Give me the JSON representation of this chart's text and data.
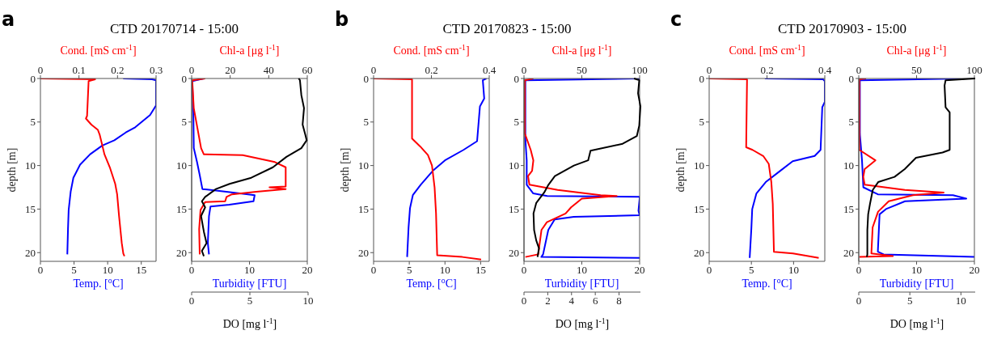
{
  "chart_data": [
    {
      "type": "line",
      "title": "CTD 20170714 - 15:00",
      "annotations": [
        "a"
      ],
      "xlabel": "Temp. [$^{o}$C]",
      "x2label": "Cond. [mS cm$^{-1}$]",
      "ylabel": "depth [m]",
      "xlim": [
        0,
        17.2
      ],
      "xticks": [
        0,
        5,
        10,
        15
      ],
      "x2lim": [
        0,
        0.3
      ],
      "x2ticks": [
        0,
        0.1,
        0.2,
        0.3
      ],
      "ylim": [
        21,
        0
      ],
      "yticks": [
        0,
        5,
        10,
        15,
        20
      ],
      "series": [
        {
          "color": "#0000ff",
          "x": [
            12.3,
            16.6,
            17.2,
            17.2,
            16.3,
            14.1,
            12.7,
            11.0,
            9.2,
            7.4,
            5.9,
            4.9,
            4.5,
            4.2,
            4.1,
            4.0
          ],
          "values": [
            0,
            0.1,
            0.2,
            3.1,
            4.2,
            5.6,
            6.2,
            7.1,
            7.7,
            8.7,
            9.9,
            11.4,
            13.0,
            15.1,
            17.3,
            20.2
          ]
        },
        {
          "axis": "x2",
          "color": "#ff0000",
          "x": [
            0,
            0.142,
            0.125,
            0.121,
            0.118,
            0.132,
            0.149,
            0.154,
            0.159,
            0.166,
            0.18,
            0.194,
            0.199,
            0.204,
            0.211,
            0.215,
            0.218
          ],
          "values": [
            0,
            0.1,
            0.3,
            4.3,
            4.6,
            5.3,
            5.9,
            6.5,
            7.4,
            8.7,
            10.2,
            12.1,
            13.3,
            15.8,
            18.9,
            20.1,
            20.4
          ]
        }
      ]
    },
    {
      "type": "line",
      "xlabel": "Turbidity [FTU]",
      "x2label": "Chl-a [μg l$^{-1}$]",
      "xlim": [
        0,
        20
      ],
      "xticks": [
        0,
        10,
        20
      ],
      "x2lim": [
        0,
        60
      ],
      "x2ticks": [
        0,
        20,
        40,
        60
      ],
      "ylim": [
        21,
        0
      ],
      "yticks": [
        0,
        5,
        10,
        15,
        20
      ],
      "series": [
        {
          "color": "#0000ff",
          "x": [
            2.1,
            0.1,
            0.3,
            0.37,
            0.93,
            1.4,
            1.86,
            6.0,
            10.9,
            10.7,
            6.5,
            3.26,
            3.0,
            2.8,
            3.0
          ],
          "values": [
            0,
            0.3,
            4.0,
            8.0,
            9.6,
            11.1,
            12.7,
            13.0,
            13.4,
            14.1,
            14.5,
            14.7,
            15.8,
            18.9,
            20.2
          ]
        },
        {
          "axis": "x2",
          "color": "#ff0000",
          "x": [
            7.0,
            0.3,
            1.1,
            4.9,
            6.3,
            26.5,
            43.2,
            48.8,
            48.8,
            40.4,
            48.8,
            33.5,
            20.9,
            18.1,
            17.4,
            7.0,
            4.6,
            3.9,
            4.2
          ],
          "values": [
            0,
            0.2,
            3.4,
            8.0,
            8.7,
            8.8,
            9.6,
            10.2,
            12.4,
            12.5,
            12.7,
            13.0,
            13.3,
            13.6,
            14.1,
            14.2,
            15.1,
            17.3,
            20.2
          ]
        }
      ]
    },
    {
      "type": "line",
      "xlabel": "DO [mg l$^{-1}$]",
      "xlim": [
        0,
        10
      ],
      "xticks": [
        0,
        5,
        10
      ],
      "ylim": [
        21,
        0
      ],
      "tick_labels": "x",
      "series": [
        {
          "color": "#000000",
          "x": [
            9.19,
            9.3,
            9.42,
            9.65,
            9.53,
            9.77,
            9.88,
            9.42,
            8.14,
            6.98,
            5.12,
            3.26,
            2.09,
            1.16,
            0.88,
            1.16,
            0.81,
            1.05,
            1.28,
            0.88,
            1.05
          ],
          "values": [
            0,
            0.2,
            1.9,
            3.4,
            5.3,
            6.5,
            7.1,
            8.0,
            9.0,
            10.2,
            11.4,
            12.1,
            12.7,
            13.6,
            14.1,
            14.8,
            15.8,
            17.6,
            18.9,
            19.8,
            20.4
          ]
        }
      ]
    },
    {
      "type": "line",
      "title": "CTD 20170823 - 15:00",
      "annotations": [
        "b"
      ],
      "xlabel": "Temp. [$^{o}$C]",
      "x2label": "Cond. [mS cm$^{-1}$]",
      "ylabel": "depth [m]",
      "xlim": [
        0,
        16.2
      ],
      "xticks": [
        0,
        5,
        10,
        15
      ],
      "x2lim": [
        0,
        0.4
      ],
      "x2ticks": [
        0,
        0.2,
        0.4
      ],
      "ylim": [
        21,
        0
      ],
      "yticks": [
        0,
        5,
        10,
        15,
        20
      ],
      "series": [
        {
          "color": "#0000ff",
          "x": [
            15.8,
            15.3,
            15.5,
            14.9,
            14.5,
            12.6,
            10.0,
            8.3,
            6.6,
            5.5,
            5.1,
            4.9,
            4.7
          ],
          "values": [
            0,
            0.2,
            2.3,
            3.2,
            7.2,
            8.2,
            9.4,
            10.6,
            12.2,
            13.4,
            14.9,
            17.1,
            20.5
          ]
        },
        {
          "axis": "x2",
          "color": "#ff0000",
          "x": [
            0,
            0.133,
            0.133,
            0.161,
            0.188,
            0.202,
            0.211,
            0.216,
            0.22,
            0.307,
            0.372
          ],
          "values": [
            0,
            0.1,
            6.9,
            7.8,
            8.8,
            10.0,
            12.5,
            15.5,
            20.3,
            20.5,
            20.8
          ]
        }
      ]
    },
    {
      "type": "line",
      "xlabel": "Turbidity [FTU]",
      "x2label": "Chl-a [μg l$^{-1}$]",
      "xlim": [
        0,
        20
      ],
      "xticks": [
        0,
        10,
        20
      ],
      "x2lim": [
        0,
        100
      ],
      "x2ticks": [
        0,
        50,
        100
      ],
      "ylim": [
        21,
        0
      ],
      "yticks": [
        0,
        5,
        10,
        15,
        20
      ],
      "series": [
        {
          "color": "#0000ff",
          "x": [
            20,
            0.23,
            0.23,
            0.47,
            0.47,
            1.6,
            4.0,
            20,
            20,
            19.8,
            20,
            8.6,
            5.3,
            4.2,
            3.3,
            3.0,
            20
          ],
          "values": [
            0,
            0.2,
            6.9,
            9.4,
            12.2,
            13.2,
            13.5,
            13.6,
            13.8,
            15.2,
            15.7,
            15.9,
            16.2,
            17.4,
            20.2,
            20.5,
            20.6
          ]
        },
        {
          "axis": "x2",
          "color": "#ff0000",
          "x": [
            8.1,
            0.7,
            0.7,
            5.8,
            8.1,
            7.0,
            3.5,
            4.7,
            29.1,
            66.3,
            80.2,
            50.0,
            40.7,
            36.0,
            19.8,
            15.1,
            12.3,
            1.2
          ],
          "values": [
            0,
            0.2,
            6.3,
            8.2,
            9.4,
            10.6,
            11.2,
            12.2,
            12.8,
            13.4,
            13.5,
            13.8,
            14.8,
            15.5,
            16.5,
            17.4,
            20.2,
            20.5
          ]
        }
      ]
    },
    {
      "type": "line",
      "xlabel": "DO [mg l$^{-1}$]",
      "xlim": [
        0,
        9.8
      ],
      "xticks": [
        0,
        2,
        4,
        6,
        8
      ],
      "ylim": [
        21,
        0
      ],
      "tick_labels": "x",
      "series": [
        {
          "color": "#000000",
          "x": [
            9.26,
            9.7,
            9.6,
            9.8,
            9.7,
            9.5,
            8.3,
            5.6,
            5.4,
            4.2,
            2.6,
            2.06,
            1.7,
            1.03,
            0.8,
            0.85,
            1.03,
            1.26,
            1.14
          ],
          "values": [
            0,
            0.2,
            1.7,
            3.2,
            5.4,
            6.6,
            7.5,
            8.3,
            9.4,
            10.0,
            11.2,
            12.2,
            13.1,
            14.3,
            15.5,
            17.4,
            18.6,
            19.5,
            20.5
          ]
        }
      ]
    },
    {
      "type": "line",
      "title": "CTD 20170903 - 15:00",
      "annotations": [
        "c"
      ],
      "xlabel": "Temp. [$^{o}$C]",
      "x2label": "Cond. [mS cm$^{-1}$]",
      "ylabel": "depth [m]",
      "xlim": [
        0,
        13.7
      ],
      "xticks": [
        0,
        5,
        10
      ],
      "x2lim": [
        0,
        0.4
      ],
      "x2ticks": [
        0,
        0.2,
        0.4
      ],
      "ylim": [
        21,
        0
      ],
      "yticks": [
        0,
        5,
        10,
        15,
        20
      ],
      "series": [
        {
          "color": "#0000ff",
          "x": [
            6.6,
            13.5,
            13.7,
            13.7,
            13.4,
            13.2,
            12.5,
            9.9,
            8.3,
            6.7,
            5.6,
            5.1,
            5.0,
            4.8
          ],
          "values": [
            0,
            0.1,
            0.3,
            2.7,
            3.3,
            8.2,
            8.9,
            9.5,
            10.7,
            11.9,
            13.2,
            15.0,
            17.2,
            20.6
          ]
        },
        {
          "axis": "x2",
          "color": "#ff0000",
          "x": [
            0,
            0.131,
            0.128,
            0.15,
            0.187,
            0.206,
            0.215,
            0.22,
            0.224,
            0.29,
            0.379
          ],
          "values": [
            0,
            0.1,
            7.9,
            8.2,
            8.9,
            9.8,
            11.9,
            14.4,
            19.9,
            20.1,
            20.6
          ]
        }
      ]
    },
    {
      "type": "line",
      "xlabel": "Turbidity [FTU]",
      "x2label": "Chl-a [μg l$^{-1}$]",
      "xlim": [
        0,
        20
      ],
      "xticks": [
        0,
        10,
        20
      ],
      "x2lim": [
        0,
        100
      ],
      "x2ticks": [
        0,
        50,
        100
      ],
      "ylim": [
        21,
        0
      ],
      "yticks": [
        0,
        5,
        10,
        15,
        20
      ],
      "series": [
        {
          "color": "#0000ff",
          "x": [
            18.4,
            0.19,
            0.19,
            0.56,
            0.79,
            3.3,
            16.3,
            18.6,
            8.0,
            4.7,
            3.6,
            3.3,
            4.3,
            20
          ],
          "values": [
            0,
            0.2,
            6.4,
            9.4,
            12.5,
            13.3,
            13.4,
            13.8,
            14.1,
            15.0,
            15.6,
            19.9,
            20.2,
            20.5
          ]
        },
        {
          "axis": "x2",
          "color": "#ff0000",
          "x": [
            6.3,
            0.5,
            0.5,
            14.4,
            5.1,
            3.9,
            5.1,
            39.8,
            73.4,
            46.8,
            25.9,
            16.7,
            12.0,
            10.9,
            29.4,
            0.5
          ],
          "values": [
            0,
            0.1,
            8.2,
            9.4,
            10.4,
            11.3,
            12.2,
            12.8,
            13.1,
            13.4,
            14.1,
            15.3,
            17.1,
            20.1,
            20.4,
            20.5
          ]
        }
      ]
    },
    {
      "type": "line",
      "xlabel": "DO [mg l$^{-1}$]",
      "xlim": [
        0,
        11.4
      ],
      "xticks": [
        0,
        5,
        10
      ],
      "ylim": [
        21,
        0
      ],
      "tick_labels": "x",
      "series": [
        {
          "color": "#000000",
          "x": [
            11.4,
            8.5,
            8.4,
            8.5,
            8.9,
            8.9,
            8.2,
            5.6,
            4.5,
            3.5,
            1.9,
            1.37,
            1.1,
            0.92,
            0.84,
            0.84,
            0.79
          ],
          "values": [
            0,
            0.2,
            0.8,
            3.3,
            3.9,
            8.2,
            8.5,
            9.1,
            10.4,
            11.3,
            11.9,
            12.8,
            14.4,
            15.6,
            17.4,
            20.2,
            20.5
          ]
        }
      ]
    }
  ]
}
